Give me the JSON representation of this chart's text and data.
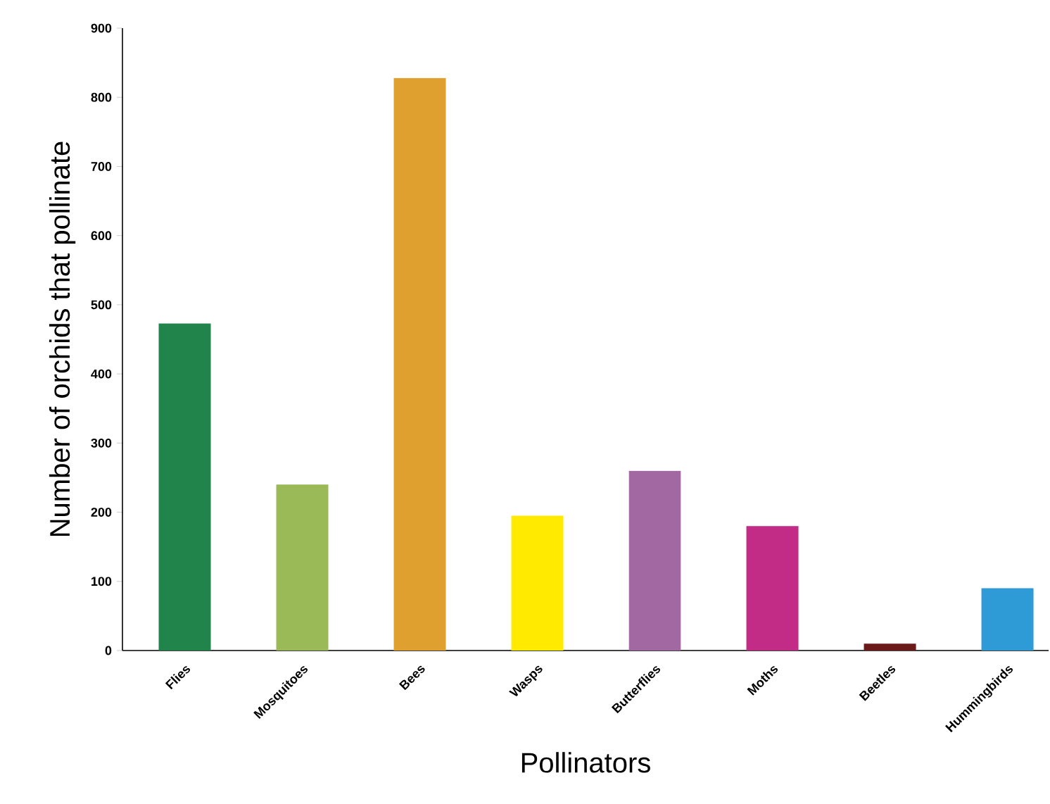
{
  "chart_data": {
    "type": "bar",
    "xlabel": "Pollinators",
    "ylabel": "Number of orchids that pollinate",
    "categories": [
      "Flies",
      "Mosquitoes",
      "Bees",
      "Wasps",
      "Butterflies",
      "Moths",
      "Beetles",
      "Hummingbirds"
    ],
    "values": [
      473,
      240,
      828,
      195,
      260,
      180,
      10,
      90
    ],
    "colors": [
      "#21844a",
      "#9ab957",
      "#e0a030",
      "#ffea00",
      "#a268a2",
      "#c22c86",
      "#6b1a1a",
      "#2e9ad6"
    ],
    "ylim": [
      0,
      900
    ],
    "yticks": [
      0,
      100,
      200,
      300,
      400,
      500,
      600,
      700,
      800,
      900
    ]
  }
}
